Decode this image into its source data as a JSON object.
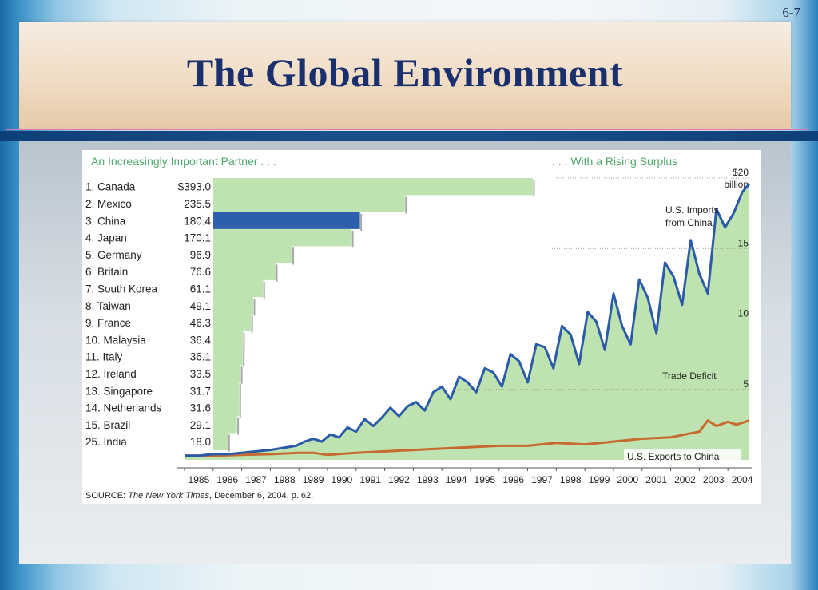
{
  "slide": {
    "number": "6-7",
    "title": "The Global Environment"
  },
  "colors": {
    "green_fill": "#bfe3b0",
    "green_text": "#4fa86b",
    "china_blue": "#2e5fad",
    "imports_line": "#2a5aa8",
    "exports_line": "#c8692f"
  },
  "chart_data": [
    {
      "type": "bar",
      "title": "An Increasingly Important Partner . . .",
      "orientation": "horizontal",
      "categories": [
        "1. Canada",
        "2. Mexico",
        "3. China",
        "4. Japan",
        "5. Germany",
        "6. Britain",
        "7. South Korea",
        "8. Taiwan",
        "9. France",
        "10. Malaysia",
        "11. Italy",
        "12. Ireland",
        "13. Singapore",
        "14. Netherlands",
        "15. Brazil",
        "25. India"
      ],
      "value_labels": [
        "$393.0",
        "235.5",
        "180.4",
        "170.1",
        "96.9",
        "76.6",
        "61.1",
        "49.1",
        "46.3",
        "36.4",
        "36.1",
        "33.5",
        "31.7",
        "31.6",
        "29.1",
        "18.0"
      ],
      "values": [
        393.0,
        235.5,
        180.4,
        170.1,
        96.9,
        76.6,
        61.1,
        49.1,
        46.3,
        36.4,
        36.1,
        33.5,
        31.7,
        31.6,
        29.1,
        18.0
      ],
      "highlight": "3. China"
    },
    {
      "type": "line",
      "title": ". . . With a Rising Surplus",
      "ylabel": "$20 billion",
      "ylim": [
        0,
        20
      ],
      "y_ticks": [
        "$20",
        "15",
        "10",
        "5"
      ],
      "y_tick_values": [
        20,
        15,
        10,
        5
      ],
      "y_unit": "billion",
      "xlim": [
        1985,
        2004.75
      ],
      "x_ticks": [
        "1985",
        "1986",
        "1987",
        "1988",
        "1989",
        "1990",
        "1991",
        "1992",
        "1993",
        "1994",
        "1995",
        "1996",
        "1997",
        "1998",
        "1999",
        "2000",
        "2001",
        "2002",
        "2003",
        "2004"
      ],
      "annotations": [
        "U.S. Imports from China",
        "Trade Deficit",
        "U.S. Exports to China"
      ],
      "series": [
        {
          "name": "U.S. Imports from China",
          "x": [
            1985,
            1985.5,
            1986,
            1986.5,
            1987,
            1987.5,
            1988,
            1988.3,
            1988.6,
            1988.9,
            1989.2,
            1989.5,
            1989.8,
            1990.1,
            1990.4,
            1990.7,
            1991,
            1991.3,
            1991.6,
            1991.9,
            1992.2,
            1992.5,
            1992.8,
            1993.1,
            1993.4,
            1993.7,
            1994,
            1994.3,
            1994.6,
            1994.9,
            1995.2,
            1995.5,
            1995.8,
            1996.1,
            1996.4,
            1996.7,
            1997,
            1997.3,
            1997.6,
            1997.9,
            1998.2,
            1998.5,
            1998.8,
            1999.1,
            1999.4,
            1999.7,
            2000,
            2000.3,
            2000.6,
            2000.9,
            2001.2,
            2001.5,
            2001.8,
            2002.1,
            2002.4,
            2002.7,
            2003,
            2003.3,
            2003.6,
            2003.9,
            2004.2,
            2004.5,
            2004.75
          ],
          "values": [
            0.3,
            0.3,
            0.4,
            0.4,
            0.5,
            0.6,
            0.7,
            0.8,
            0.9,
            1.0,
            1.3,
            1.5,
            1.3,
            1.8,
            1.6,
            2.3,
            2.0,
            2.9,
            2.4,
            3.0,
            3.7,
            3.1,
            3.8,
            4.1,
            3.5,
            4.8,
            5.2,
            4.3,
            5.9,
            5.5,
            4.8,
            6.5,
            6.2,
            5.2,
            7.5,
            7.0,
            5.5,
            8.2,
            8.0,
            6.5,
            9.5,
            8.9,
            6.8,
            10.5,
            9.8,
            7.8,
            11.8,
            9.5,
            8.2,
            12.8,
            11.5,
            9.0,
            14.0,
            13.0,
            11.0,
            15.6,
            13.2,
            11.8,
            17.8,
            16.5,
            17.5,
            19.0,
            19.6
          ]
        },
        {
          "name": "U.S. Exports to China",
          "x": [
            1985,
            1986,
            1987,
            1988,
            1989,
            1989.5,
            1990,
            1991,
            1992,
            1993,
            1994,
            1995,
            1996,
            1997,
            1998,
            1999,
            2000,
            2001,
            2002,
            2002.5,
            2003,
            2003.3,
            2003.6,
            2004,
            2004.3,
            2004.75
          ],
          "values": [
            0.3,
            0.3,
            0.35,
            0.4,
            0.5,
            0.5,
            0.35,
            0.5,
            0.6,
            0.7,
            0.8,
            0.9,
            1.0,
            1.0,
            1.2,
            1.1,
            1.3,
            1.5,
            1.6,
            1.8,
            2.0,
            2.8,
            2.4,
            2.7,
            2.5,
            2.8
          ]
        }
      ]
    }
  ],
  "source": {
    "prefix": "SOURCE: ",
    "publication": "The New York Times",
    "suffix": ", December 6, 2004, p. 62."
  }
}
